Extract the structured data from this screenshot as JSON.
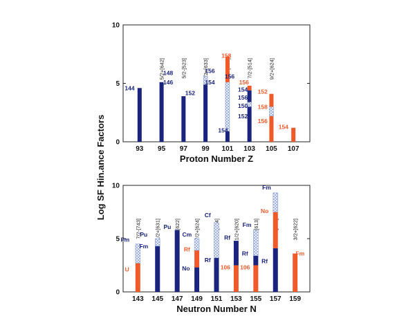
{
  "y_axis_title": "Log SF Hin.ance Factors",
  "colors": {
    "blue": "#1a237e",
    "red": "#f05a28",
    "hatch": "#8fa3d6",
    "axis": "#222222"
  },
  "chart_data": [
    {
      "type": "bar",
      "xlabel": "Proton Number Z",
      "ylim": [
        0,
        10
      ],
      "yticks": [
        0,
        5,
        10
      ],
      "xticks": [
        93,
        95,
        97,
        99,
        101,
        103,
        105,
        107
      ],
      "xlim": [
        91.5,
        108.5
      ],
      "configs": [
        {
          "x": 95,
          "text": "5/2+[642]"
        },
        {
          "x": 97,
          "text": "5/2-[523]"
        },
        {
          "x": 99,
          "text": "7/2+[633]"
        },
        {
          "x": 101,
          "text": "7/2+[633]"
        },
        {
          "x": 103,
          "text": "7/2-[514]"
        },
        {
          "x": 105,
          "text": "9/2+[624]"
        }
      ],
      "bars": [
        {
          "x": 93,
          "segments": [
            {
              "y0": 0,
              "y1": 4.6,
              "kind": "blue"
            }
          ]
        },
        {
          "x": 95,
          "segments": [
            {
              "y0": 0,
              "y1": 5.1,
              "kind": "blue"
            }
          ]
        },
        {
          "x": 97,
          "segments": [
            {
              "y0": 0,
              "y1": 3.9,
              "kind": "blue"
            }
          ]
        },
        {
          "x": 99,
          "segments": [
            {
              "y0": 0,
              "y1": 4.9,
              "kind": "blue"
            },
            {
              "y0": 4.9,
              "y1": 5.6,
              "kind": "hatch"
            }
          ]
        },
        {
          "x": 101,
          "segments": [
            {
              "y0": 0,
              "y1": 0.9,
              "kind": "blue"
            },
            {
              "y0": 0.9,
              "y1": 5.1,
              "kind": "hatch"
            },
            {
              "y0": 5.1,
              "y1": 7.3,
              "kind": "red"
            }
          ]
        },
        {
          "x": 103,
          "segments": [
            {
              "y0": 0,
              "y1": 3.0,
              "kind": "blue"
            },
            {
              "y0": 3.0,
              "y1": 3.4,
              "kind": "hatch"
            },
            {
              "y0": 3.4,
              "y1": 4.4,
              "kind": "blue"
            },
            {
              "y0": 4.4,
              "y1": 4.8,
              "kind": "red"
            }
          ]
        },
        {
          "x": 105,
          "segments": [
            {
              "y0": 0,
              "y1": 2.2,
              "kind": "red"
            },
            {
              "y0": 2.2,
              "y1": 3.0,
              "kind": "hatch"
            },
            {
              "y0": 3.0,
              "y1": 4.1,
              "kind": "red"
            }
          ]
        },
        {
          "x": 107,
          "segments": [
            {
              "y0": 0,
              "y1": 1.2,
              "kind": "red"
            }
          ]
        }
      ],
      "annotations": [
        {
          "x": 92.1,
          "y": 4.4,
          "text": "144",
          "color": "blue"
        },
        {
          "x": 95.6,
          "y": 5.7,
          "text": "148",
          "color": "blue"
        },
        {
          "x": 95.6,
          "y": 4.9,
          "text": "146",
          "color": "blue"
        },
        {
          "x": 97.6,
          "y": 4.0,
          "text": "152",
          "color": "blue"
        },
        {
          "x": 99.4,
          "y": 5.9,
          "text": "156",
          "color": "blue"
        },
        {
          "x": 99.4,
          "y": 4.9,
          "text": "154",
          "color": "blue"
        },
        {
          "x": 100.9,
          "y": 7.2,
          "text": "158",
          "color": "red"
        },
        {
          "x": 101.2,
          "y": 5.4,
          "text": "156",
          "color": "blue"
        },
        {
          "x": 100.6,
          "y": 0.8,
          "text": "154",
          "color": "blue"
        },
        {
          "x": 102.5,
          "y": 4.9,
          "text": "156",
          "color": "red"
        },
        {
          "x": 102.4,
          "y": 4.3,
          "text": "154",
          "color": "blue"
        },
        {
          "x": 102.4,
          "y": 3.6,
          "text": "156",
          "color": "blue"
        },
        {
          "x": 102.4,
          "y": 2.9,
          "text": "150",
          "color": "blue"
        },
        {
          "x": 102.4,
          "y": 2.0,
          "text": "152",
          "color": "blue"
        },
        {
          "x": 104.2,
          "y": 4.1,
          "text": "152",
          "color": "red"
        },
        {
          "x": 104.2,
          "y": 2.8,
          "text": "158",
          "color": "red"
        },
        {
          "x": 104.2,
          "y": 1.6,
          "text": "156",
          "color": "red"
        },
        {
          "x": 106.1,
          "y": 1.1,
          "text": "154",
          "color": "red"
        }
      ]
    },
    {
      "type": "bar",
      "xlabel": "Neutron Number N",
      "ylim": [
        0,
        10
      ],
      "yticks": [
        0,
        5,
        10
      ],
      "xticks": [
        143,
        145,
        147,
        149,
        151,
        153,
        155,
        157,
        159
      ],
      "xlim": [
        141.5,
        160.5
      ],
      "configs": [
        {
          "x": 143,
          "text": "7/2-[743]"
        },
        {
          "x": 145,
          "text": "1/2+[631]"
        },
        {
          "x": 147,
          "text": "5/2+[622]"
        },
        {
          "x": 149,
          "text": "7/2+[624]"
        },
        {
          "x": 151,
          "text": "9/2-[734]"
        },
        {
          "x": 153,
          "text": "1/2+[620]"
        },
        {
          "x": 155,
          "text": "7/2+[613]"
        },
        {
          "x": 157,
          "text": "9/2+[615]"
        },
        {
          "x": 159,
          "text": "3/2+[622]"
        }
      ],
      "bars": [
        {
          "x": 143,
          "segments": [
            {
              "y0": 0,
              "y1": 2.7,
              "kind": "red"
            },
            {
              "y0": 2.7,
              "y1": 4.5,
              "kind": "hatch"
            }
          ]
        },
        {
          "x": 145,
          "segments": [
            {
              "y0": 0,
              "y1": 4.3,
              "kind": "blue"
            },
            {
              "y0": 4.3,
              "y1": 5.0,
              "kind": "hatch"
            }
          ]
        },
        {
          "x": 147,
          "segments": [
            {
              "y0": 0,
              "y1": 5.8,
              "kind": "blue"
            }
          ]
        },
        {
          "x": 149,
          "segments": [
            {
              "y0": 0,
              "y1": 2.3,
              "kind": "blue"
            },
            {
              "y0": 2.3,
              "y1": 3.9,
              "kind": "red"
            },
            {
              "y0": 3.9,
              "y1": 5.0,
              "kind": "hatch"
            }
          ]
        },
        {
          "x": 151,
          "segments": [
            {
              "y0": 0,
              "y1": 3.2,
              "kind": "blue"
            },
            {
              "y0": 3.2,
              "y1": 6.5,
              "kind": "hatch"
            }
          ]
        },
        {
          "x": 153,
          "segments": [
            {
              "y0": 0,
              "y1": 2.5,
              "kind": "red"
            },
            {
              "y0": 2.5,
              "y1": 4.8,
              "kind": "blue"
            }
          ]
        },
        {
          "x": 155,
          "segments": [
            {
              "y0": 0,
              "y1": 2.5,
              "kind": "red"
            },
            {
              "y0": 2.5,
              "y1": 3.4,
              "kind": "blue"
            },
            {
              "y0": 3.4,
              "y1": 5.8,
              "kind": "hatch"
            }
          ]
        },
        {
          "x": 157,
          "segments": [
            {
              "y0": 0,
              "y1": 4.1,
              "kind": "blue"
            },
            {
              "y0": 4.1,
              "y1": 7.5,
              "kind": "red"
            },
            {
              "y0": 7.5,
              "y1": 9.3,
              "kind": "hatch"
            }
          ]
        },
        {
          "x": 159,
          "segments": [
            {
              "y0": 0,
              "y1": 3.6,
              "kind": "red"
            }
          ]
        }
      ],
      "annotations": [
        {
          "x": 141.7,
          "y": 4.7,
          "text": "Fm",
          "color": "blue"
        },
        {
          "x": 141.9,
          "y": 1.9,
          "text": "U",
          "color": "red"
        },
        {
          "x": 143.6,
          "y": 5.2,
          "text": "Pu",
          "color": "blue"
        },
        {
          "x": 143.6,
          "y": 4.1,
          "text": "Fm",
          "color": "blue"
        },
        {
          "x": 146.0,
          "y": 5.9,
          "text": "Pu",
          "color": "blue"
        },
        {
          "x": 148.0,
          "y": 5.2,
          "text": "Cm",
          "color": "blue"
        },
        {
          "x": 148.0,
          "y": 3.8,
          "text": "Rf",
          "color": "red"
        },
        {
          "x": 147.9,
          "y": 2.0,
          "text": "No",
          "color": "blue"
        },
        {
          "x": 150.1,
          "y": 7.0,
          "text": "Cf",
          "color": "blue"
        },
        {
          "x": 150.1,
          "y": 2.8,
          "text": "Rf",
          "color": "blue"
        },
        {
          "x": 152.1,
          "y": 4.9,
          "text": "Rf",
          "color": "blue"
        },
        {
          "x": 151.9,
          "y": 2.1,
          "text": "106",
          "color": "red"
        },
        {
          "x": 154.1,
          "y": 6.1,
          "text": "Fm",
          "color": "blue"
        },
        {
          "x": 153.9,
          "y": 3.4,
          "text": "Rf",
          "color": "blue"
        },
        {
          "x": 153.9,
          "y": 2.1,
          "text": "106",
          "color": "red"
        },
        {
          "x": 156.1,
          "y": 9.6,
          "text": "Fm",
          "color": "blue"
        },
        {
          "x": 155.9,
          "y": 7.4,
          "text": "No",
          "color": "red"
        },
        {
          "x": 155.9,
          "y": 2.7,
          "text": "Rf",
          "color": "blue"
        },
        {
          "x": 159.5,
          "y": 3.4,
          "text": "Fm",
          "color": "red"
        }
      ]
    }
  ]
}
